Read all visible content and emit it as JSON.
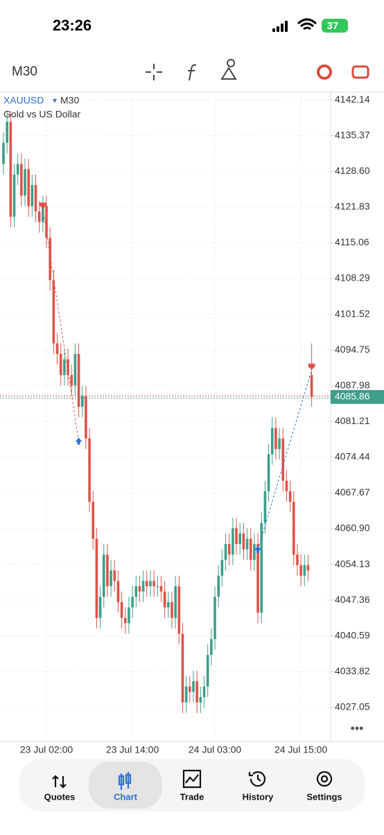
{
  "status_bar": {
    "time": "23:26",
    "battery": "37"
  },
  "toolbar": {
    "timeframe": "M30"
  },
  "nav": [
    "Quotes",
    "Chart",
    "Trade",
    "History",
    "Settings"
  ],
  "active_nav": 1,
  "chart_data": {
    "type": "candlestick",
    "title": "XAUUSD",
    "timeframe": "M30",
    "subtitle": "Gold vs US Dollar",
    "up_color": "#3d9e8a",
    "down_color": "#dd5248",
    "categories": [
      null,
      null,
      null,
      null,
      null,
      null,
      null,
      null,
      null,
      null,
      null,
      null,
      "23 Jul 02:00",
      null,
      null,
      null,
      null,
      null,
      null,
      null,
      null,
      null,
      null,
      null,
      null,
      null,
      null,
      null,
      null,
      null,
      null,
      null,
      null,
      null,
      null,
      null,
      "23 Jul 14:00",
      null,
      null,
      null,
      null,
      null,
      null,
      null,
      null,
      null,
      null,
      null,
      null,
      null,
      null,
      null,
      null,
      null,
      null,
      null,
      null,
      null,
      null,
      "24 Jul 03:00",
      null,
      null,
      null,
      null,
      null,
      null,
      null,
      null,
      null,
      null,
      null,
      null,
      null,
      null,
      null,
      null,
      null,
      null,
      null,
      null,
      null,
      null,
      null,
      "24 Jul 15:00",
      null,
      null,
      null
    ],
    "open": [
      4130,
      4134,
      4138,
      4120,
      4128,
      4130,
      4124,
      4129,
      4122,
      4126,
      4121,
      4119,
      4122,
      4116,
      4108,
      4096,
      4094,
      4090,
      4093,
      4090,
      4088,
      4094,
      4084,
      4086,
      4078,
      4066,
      4059,
      4044,
      4048,
      4056,
      4050,
      4053,
      4051,
      4047,
      4044,
      4043,
      4046,
      4048,
      4050,
      4049,
      4051,
      4050,
      4051,
      4050,
      4050,
      4049,
      4046,
      4047,
      4044,
      4050,
      4041,
      4028,
      4031,
      4030,
      4032,
      4028,
      4029,
      4031,
      4037,
      4040,
      4048,
      4052,
      4055,
      4058,
      4056,
      4061,
      4058,
      4060,
      4057,
      4059,
      4055,
      4058,
      4045,
      4062,
      4068,
      4075,
      4080,
      4076,
      4078,
      4070,
      4068,
      4066,
      4056,
      4054,
      4052,
      4054,
      4090
    ],
    "high": [
      4136,
      4140,
      4140,
      4130,
      4132,
      4132,
      4131,
      4131,
      4128,
      4128,
      4123,
      4124,
      4124,
      4118,
      4110,
      4098,
      4096,
      4095,
      4095,
      4092,
      4096,
      4096,
      4088,
      4088,
      4080,
      4068,
      4061,
      4050,
      4058,
      4058,
      4055,
      4055,
      4053,
      4049,
      4046,
      4048,
      4050,
      4052,
      4052,
      4053,
      4053,
      4053,
      4053,
      4052,
      4052,
      4051,
      4049,
      4049,
      4052,
      4052,
      4043,
      4033,
      4033,
      4034,
      4034,
      4031,
      4033,
      4039,
      4042,
      4050,
      4054,
      4057,
      4060,
      4060,
      4063,
      4063,
      4062,
      4062,
      4061,
      4061,
      4060,
      4060,
      4064,
      4070,
      4077,
      4082,
      4082,
      4080,
      4080,
      4072,
      4070,
      4068,
      4058,
      4056,
      4056,
      4056,
      4096
    ],
    "low": [
      4128,
      4132,
      4118,
      4118,
      4126,
      4122,
      4122,
      4120,
      4120,
      4119,
      4117,
      4117,
      4114,
      4106,
      4094,
      4092,
      4088,
      4088,
      4088,
      4086,
      4086,
      4082,
      4082,
      4076,
      4064,
      4057,
      4042,
      4042,
      4046,
      4048,
      4048,
      4049,
      4045,
      4042,
      4041,
      4041,
      4044,
      4046,
      4047,
      4047,
      4048,
      4048,
      4048,
      4048,
      4047,
      4044,
      4044,
      4042,
      4042,
      4039,
      4026,
      4026,
      4028,
      4028,
      4026,
      4026,
      4027,
      4029,
      4035,
      4038,
      4046,
      4050,
      4053,
      4054,
      4054,
      4056,
      4056,
      4055,
      4055,
      4053,
      4053,
      4043,
      4043,
      4060,
      4066,
      4073,
      4074,
      4074,
      4068,
      4066,
      4064,
      4054,
      4052,
      4050,
      4050,
      4051,
      4084
    ],
    "close": [
      4134,
      4138,
      4120,
      4128,
      4130,
      4124,
      4129,
      4122,
      4126,
      4121,
      4119,
      4122,
      4116,
      4108,
      4096,
      4094,
      4090,
      4093,
      4090,
      4088,
      4094,
      4084,
      4086,
      4078,
      4066,
      4059,
      4044,
      4048,
      4056,
      4050,
      4053,
      4051,
      4047,
      4044,
      4043,
      4046,
      4048,
      4050,
      4049,
      4051,
      4050,
      4051,
      4050,
      4050,
      4049,
      4046,
      4047,
      4044,
      4050,
      4041,
      4028,
      4031,
      4030,
      4032,
      4028,
      4029,
      4031,
      4037,
      4040,
      4048,
      4052,
      4055,
      4058,
      4056,
      4061,
      4058,
      4060,
      4057,
      4059,
      4055,
      4058,
      4045,
      4062,
      4068,
      4075,
      4080,
      4076,
      4078,
      4070,
      4068,
      4066,
      4056,
      4054,
      4052,
      4054,
      4053,
      4085.86
    ],
    "current_price": 4085.86,
    "trades": [
      {
        "entry_index": 11,
        "entry": 4121.5,
        "exit_index": 21,
        "exit": 4077.5
      },
      {
        "entry_index": 71,
        "entry": 4057,
        "exit_index": 86,
        "exit": 4091
      }
    ],
    "ylim": [
      4020.6,
      4143.6
    ],
    "yticks": [
      4142.14,
      {
        "value": 4135.37,
        "label": "4135.37"
      },
      {
        "value": 4128.6,
        "label": "4128.60"
      },
      4121.83,
      4115.06,
      4108.29,
      4101.52,
      4094.75,
      4087.98,
      4081.21,
      4074.44,
      4067.67,
      {
        "value": 4060.9,
        "label": "4060.90"
      },
      4054.13,
      4047.36,
      4040.59,
      4033.82,
      4027.05
    ],
    "grid": true
  }
}
